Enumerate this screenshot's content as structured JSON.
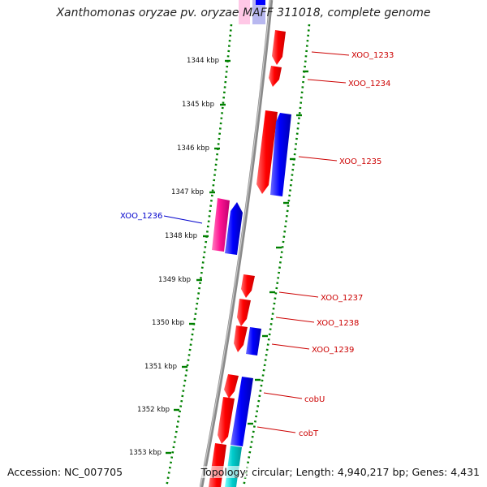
{
  "title": "Xanthomonas oryzae pv. oryzae MAFF 311018, complete genome",
  "accession_text": "Accession: NC_007705",
  "summary_text": "Topology: circular; Length: 4,940,217 bp; Genes: 4,431",
  "colors": {
    "forward_gene": "#ff0000",
    "reverse_gene": "#0000ff",
    "pink_gene": "#ff1493",
    "cyan_gene": "#00c8c8",
    "scale_dots": "#008000",
    "backbone": "#888888",
    "forward_label": "#cc0000",
    "reverse_label": "#0000cc"
  },
  "scale": {
    "ticks": [
      {
        "label": "1344 kbp"
      },
      {
        "label": "1345 kbp"
      },
      {
        "label": "1346 kbp"
      },
      {
        "label": "1347 kbp"
      },
      {
        "label": "1348 kbp"
      },
      {
        "label": "1349 kbp"
      },
      {
        "label": "1350 kbp"
      },
      {
        "label": "1351 kbp"
      },
      {
        "label": "1352 kbp"
      },
      {
        "label": "1353 kbp"
      }
    ]
  },
  "gene_labels": [
    {
      "name": "XOO_1233",
      "strand": "forward"
    },
    {
      "name": "XOO_1234",
      "strand": "forward"
    },
    {
      "name": "XOO_1235",
      "strand": "forward"
    },
    {
      "name": "XOO_1236",
      "strand": "reverse"
    },
    {
      "name": "XOO_1237",
      "strand": "forward"
    },
    {
      "name": "XOO_1238",
      "strand": "forward"
    },
    {
      "name": "XOO_1239",
      "strand": "forward"
    },
    {
      "name": "cobU",
      "strand": "forward"
    },
    {
      "name": "cobT",
      "strand": "forward"
    }
  ]
}
